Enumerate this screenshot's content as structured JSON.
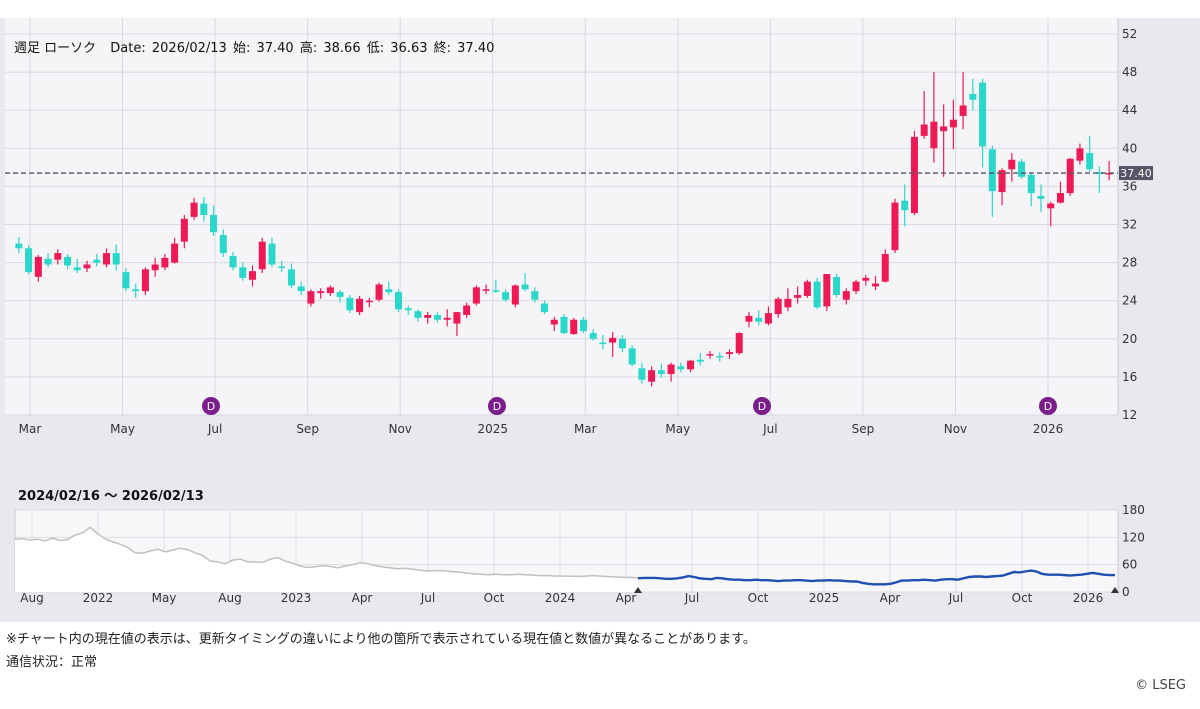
{
  "ohlc_readout": {
    "label": "週足 ローソク",
    "date_label": "Date:",
    "date": "2026/02/13",
    "open_label": "始:",
    "open": "37.40",
    "high_label": "高:",
    "high": "38.66",
    "low_label": "低:",
    "low": "36.63",
    "close_label": "終:",
    "close": "37.40"
  },
  "chart_data": [
    {
      "type": "candlestick",
      "interval": "weekly",
      "y_axis": {
        "ticks": [
          12,
          16,
          20,
          24,
          28,
          32,
          36,
          40,
          44,
          48,
          52
        ],
        "range": [
          12,
          52
        ],
        "side": "right"
      },
      "x_axis": {
        "labels": [
          "Mar",
          "May",
          "Jul",
          "Sep",
          "Nov",
          "2025",
          "Mar",
          "May",
          "Jul",
          "Sep",
          "Nov",
          "2026"
        ]
      },
      "current_value": 37.4,
      "current_value_label": "37.40",
      "colors": {
        "up": "#ee1a56",
        "down": "#2bd6cb",
        "current_line": "#555566"
      },
      "dividend_marker_label": "D",
      "dividend_markers_at_week": [
        37,
        92,
        146,
        201
      ],
      "candles": [
        [
          30.0,
          30.7,
          29.0,
          29.5
        ],
        [
          29.5,
          29.8,
          26.8,
          27.0
        ],
        [
          26.5,
          28.8,
          26.0,
          28.6
        ],
        [
          28.4,
          29.0,
          27.5,
          27.8
        ],
        [
          28.3,
          29.4,
          27.8,
          29.0
        ],
        [
          28.6,
          28.9,
          27.3,
          27.7
        ],
        [
          27.5,
          28.4,
          26.9,
          27.2
        ],
        [
          27.4,
          28.2,
          27.0,
          27.8
        ],
        [
          28.3,
          28.9,
          27.6,
          28.0
        ],
        [
          27.8,
          29.5,
          27.5,
          29.0
        ],
        [
          29.0,
          29.9,
          27.2,
          27.8
        ],
        [
          27.0,
          27.4,
          25.0,
          25.3
        ],
        [
          25.2,
          25.8,
          24.3,
          25.0
        ],
        [
          25.0,
          27.5,
          24.6,
          27.3
        ],
        [
          27.2,
          28.5,
          26.5,
          27.8
        ],
        [
          27.5,
          28.9,
          27.2,
          28.5
        ],
        [
          28.0,
          30.6,
          27.9,
          30.0
        ],
        [
          30.2,
          33.0,
          29.5,
          32.6
        ],
        [
          32.8,
          34.8,
          32.5,
          34.3
        ],
        [
          34.2,
          34.9,
          32.3,
          33.0
        ],
        [
          33.0,
          34.0,
          30.8,
          31.2
        ],
        [
          30.9,
          31.5,
          28.6,
          29.0
        ],
        [
          28.7,
          29.1,
          27.2,
          27.5
        ],
        [
          27.5,
          28.0,
          26.1,
          26.4
        ],
        [
          26.2,
          27.7,
          25.5,
          27.1
        ],
        [
          27.3,
          30.6,
          26.9,
          30.2
        ],
        [
          30.0,
          30.6,
          27.5,
          27.8
        ],
        [
          27.6,
          28.2,
          27.0,
          27.5
        ],
        [
          27.3,
          27.9,
          25.3,
          25.6
        ],
        [
          25.5,
          26.0,
          24.6,
          25.0
        ],
        [
          23.7,
          25.2,
          23.4,
          25.0
        ],
        [
          24.8,
          25.3,
          24.2,
          25.0
        ],
        [
          24.8,
          25.6,
          24.5,
          25.4
        ],
        [
          24.9,
          25.1,
          23.8,
          24.4
        ],
        [
          24.3,
          24.6,
          22.7,
          23.0
        ],
        [
          22.8,
          24.5,
          22.5,
          24.2
        ],
        [
          24.0,
          24.3,
          23.3,
          24.0
        ],
        [
          24.1,
          25.9,
          23.9,
          25.7
        ],
        [
          25.2,
          26.0,
          24.6,
          24.9
        ],
        [
          24.9,
          25.2,
          22.8,
          23.1
        ],
        [
          23.2,
          23.5,
          22.5,
          23.0
        ],
        [
          22.9,
          23.1,
          21.8,
          22.2
        ],
        [
          22.2,
          22.8,
          21.6,
          22.5
        ],
        [
          22.5,
          22.8,
          21.7,
          22.0
        ],
        [
          22.0,
          23.1,
          21.3,
          22.2
        ],
        [
          21.6,
          22.8,
          20.3,
          22.8
        ],
        [
          22.5,
          23.8,
          22.2,
          23.5
        ],
        [
          23.7,
          25.6,
          23.5,
          25.4
        ],
        [
          25.1,
          25.7,
          24.7,
          25.2
        ],
        [
          25.1,
          26.2,
          24.8,
          25.0
        ],
        [
          24.9,
          25.2,
          23.9,
          24.1
        ],
        [
          23.6,
          25.7,
          23.3,
          25.6
        ],
        [
          25.7,
          26.9,
          25.0,
          25.2
        ],
        [
          25.0,
          25.4,
          23.8,
          24.1
        ],
        [
          23.7,
          24.0,
          22.6,
          22.8
        ],
        [
          21.5,
          22.3,
          20.8,
          22.0
        ],
        [
          22.3,
          22.6,
          20.5,
          20.6
        ],
        [
          20.5,
          22.2,
          20.4,
          22.0
        ],
        [
          22.0,
          22.3,
          20.6,
          20.8
        ],
        [
          20.6,
          21.0,
          19.8,
          20.0
        ],
        [
          19.6,
          20.4,
          18.9,
          19.5
        ],
        [
          19.6,
          20.7,
          18.1,
          20.1
        ],
        [
          20.0,
          20.4,
          18.6,
          19.0
        ],
        [
          19.0,
          19.3,
          17.1,
          17.3
        ],
        [
          16.9,
          17.5,
          15.3,
          15.7
        ],
        [
          15.5,
          17.1,
          15.0,
          16.7
        ],
        [
          16.7,
          17.4,
          15.9,
          16.3
        ],
        [
          16.3,
          17.5,
          15.5,
          17.3
        ],
        [
          17.1,
          17.5,
          16.5,
          16.8
        ],
        [
          16.8,
          17.8,
          16.5,
          17.7
        ],
        [
          17.8,
          18.5,
          17.2,
          17.6
        ],
        [
          18.3,
          18.7,
          17.9,
          18.4
        ],
        [
          18.2,
          18.6,
          17.6,
          18.1
        ],
        [
          18.4,
          18.9,
          17.9,
          18.6
        ],
        [
          18.5,
          20.7,
          18.3,
          20.6
        ],
        [
          21.8,
          22.8,
          21.2,
          22.4
        ],
        [
          22.2,
          23.0,
          21.4,
          21.8
        ],
        [
          21.6,
          23.4,
          21.4,
          22.7
        ],
        [
          22.6,
          24.4,
          22.2,
          24.2
        ],
        [
          23.3,
          25.3,
          22.9,
          24.2
        ],
        [
          24.3,
          25.5,
          23.7,
          24.6
        ],
        [
          24.5,
          26.2,
          24.3,
          26.0
        ],
        [
          26.0,
          26.4,
          23.1,
          23.3
        ],
        [
          23.4,
          26.8,
          22.9,
          26.8
        ],
        [
          26.5,
          26.8,
          24.3,
          24.6
        ],
        [
          24.1,
          25.3,
          23.6,
          25.0
        ],
        [
          25.0,
          26.2,
          24.7,
          26.0
        ],
        [
          26.1,
          26.7,
          25.6,
          26.4
        ],
        [
          25.5,
          26.6,
          25.1,
          25.8
        ],
        [
          26.0,
          29.4,
          25.9,
          28.9
        ],
        [
          29.3,
          34.7,
          29.0,
          34.3
        ],
        [
          34.5,
          36.2,
          31.8,
          33.5
        ],
        [
          33.2,
          41.8,
          33.0,
          41.2
        ],
        [
          41.3,
          46.0,
          41.0,
          42.5
        ],
        [
          40.0,
          48.0,
          38.5,
          42.8
        ],
        [
          41.8,
          44.6,
          37.0,
          42.3
        ],
        [
          42.2,
          45.1,
          39.9,
          43.0
        ],
        [
          43.4,
          48.0,
          42.0,
          44.5
        ],
        [
          45.7,
          47.3,
          44.0,
          45.1
        ],
        [
          46.9,
          47.3,
          38.0,
          40.2
        ],
        [
          39.9,
          40.3,
          32.8,
          35.5
        ],
        [
          35.4,
          37.9,
          34.0,
          37.7
        ],
        [
          37.8,
          39.5,
          36.5,
          38.8
        ],
        [
          38.6,
          38.9,
          36.8,
          37.0
        ],
        [
          37.2,
          37.5,
          33.9,
          35.3
        ],
        [
          35.0,
          36.2,
          33.3,
          34.7
        ],
        [
          33.7,
          34.4,
          31.8,
          34.2
        ],
        [
          34.3,
          36.5,
          34.2,
          35.3
        ],
        [
          35.3,
          39.0,
          35.0,
          38.9
        ],
        [
          38.7,
          40.5,
          38.3,
          40.0
        ],
        [
          39.5,
          41.3,
          37.5,
          37.8
        ],
        [
          37.5,
          38.1,
          35.3,
          37.3
        ],
        [
          37.4,
          38.66,
          36.63,
          37.4
        ]
      ]
    },
    {
      "type": "area-line",
      "name": "overview",
      "range_label": "2024/02/16 〜 2026/02/13",
      "y_axis": {
        "ticks": [
          0,
          60,
          120,
          180
        ],
        "range": [
          0,
          180
        ],
        "side": "right"
      },
      "x_axis": {
        "labels": [
          "Aug",
          "2022",
          "May",
          "Aug",
          "2023",
          "Apr",
          "Jul",
          "Oct",
          "2024",
          "Apr",
          "Jul",
          "Oct",
          "2025",
          "Apr",
          "Jul",
          "Oct",
          "2026"
        ]
      },
      "history": [
        116,
        117,
        114,
        116,
        112,
        118,
        113,
        115,
        125,
        130,
        142,
        128,
        117,
        110,
        105,
        98,
        86,
        85,
        90,
        94,
        88,
        92,
        96,
        93,
        86,
        80,
        68,
        66,
        62,
        70,
        72,
        66,
        66,
        65,
        72,
        76,
        68,
        63,
        57,
        54,
        55,
        58,
        56,
        53,
        57,
        60,
        64,
        62,
        58,
        55,
        53,
        51,
        52,
        50,
        48,
        46,
        47,
        47,
        45,
        44,
        42,
        40,
        39,
        38,
        39,
        38,
        38,
        39,
        38,
        37,
        36,
        36,
        35,
        35,
        35,
        34,
        35,
        36,
        35,
        34,
        33,
        32,
        32,
        31
      ],
      "selected": [
        30,
        31,
        31,
        31,
        30,
        29,
        29,
        30,
        32,
        35,
        33,
        30,
        29,
        28,
        31,
        30,
        28,
        27,
        27,
        26,
        26,
        27,
        26,
        26,
        25,
        24,
        25,
        25,
        26,
        26,
        25,
        24,
        25,
        25,
        26,
        25,
        25,
        24,
        23,
        23,
        20,
        18,
        17,
        17,
        17,
        18,
        21,
        25,
        25,
        26,
        26,
        27,
        26,
        25,
        27,
        28,
        28,
        27,
        30,
        33,
        34,
        34,
        33,
        34,
        35,
        36,
        40,
        44,
        43,
        45,
        47,
        45,
        40,
        38,
        38,
        38,
        37,
        36,
        37,
        38,
        40,
        42,
        40,
        38,
        37,
        37
      ],
      "colors": {
        "history_line": "#c0c0c0",
        "history_fill": "#f4f4f6",
        "selected_line": "#1f4fb0"
      }
    }
  ],
  "note": "※チャート内の現在値の表示は、更新タイミングの違いにより他の箇所で表示されている現在値と数値が異なることがあります。",
  "status": "通信状況：正常",
  "copyright": "© LSEG"
}
